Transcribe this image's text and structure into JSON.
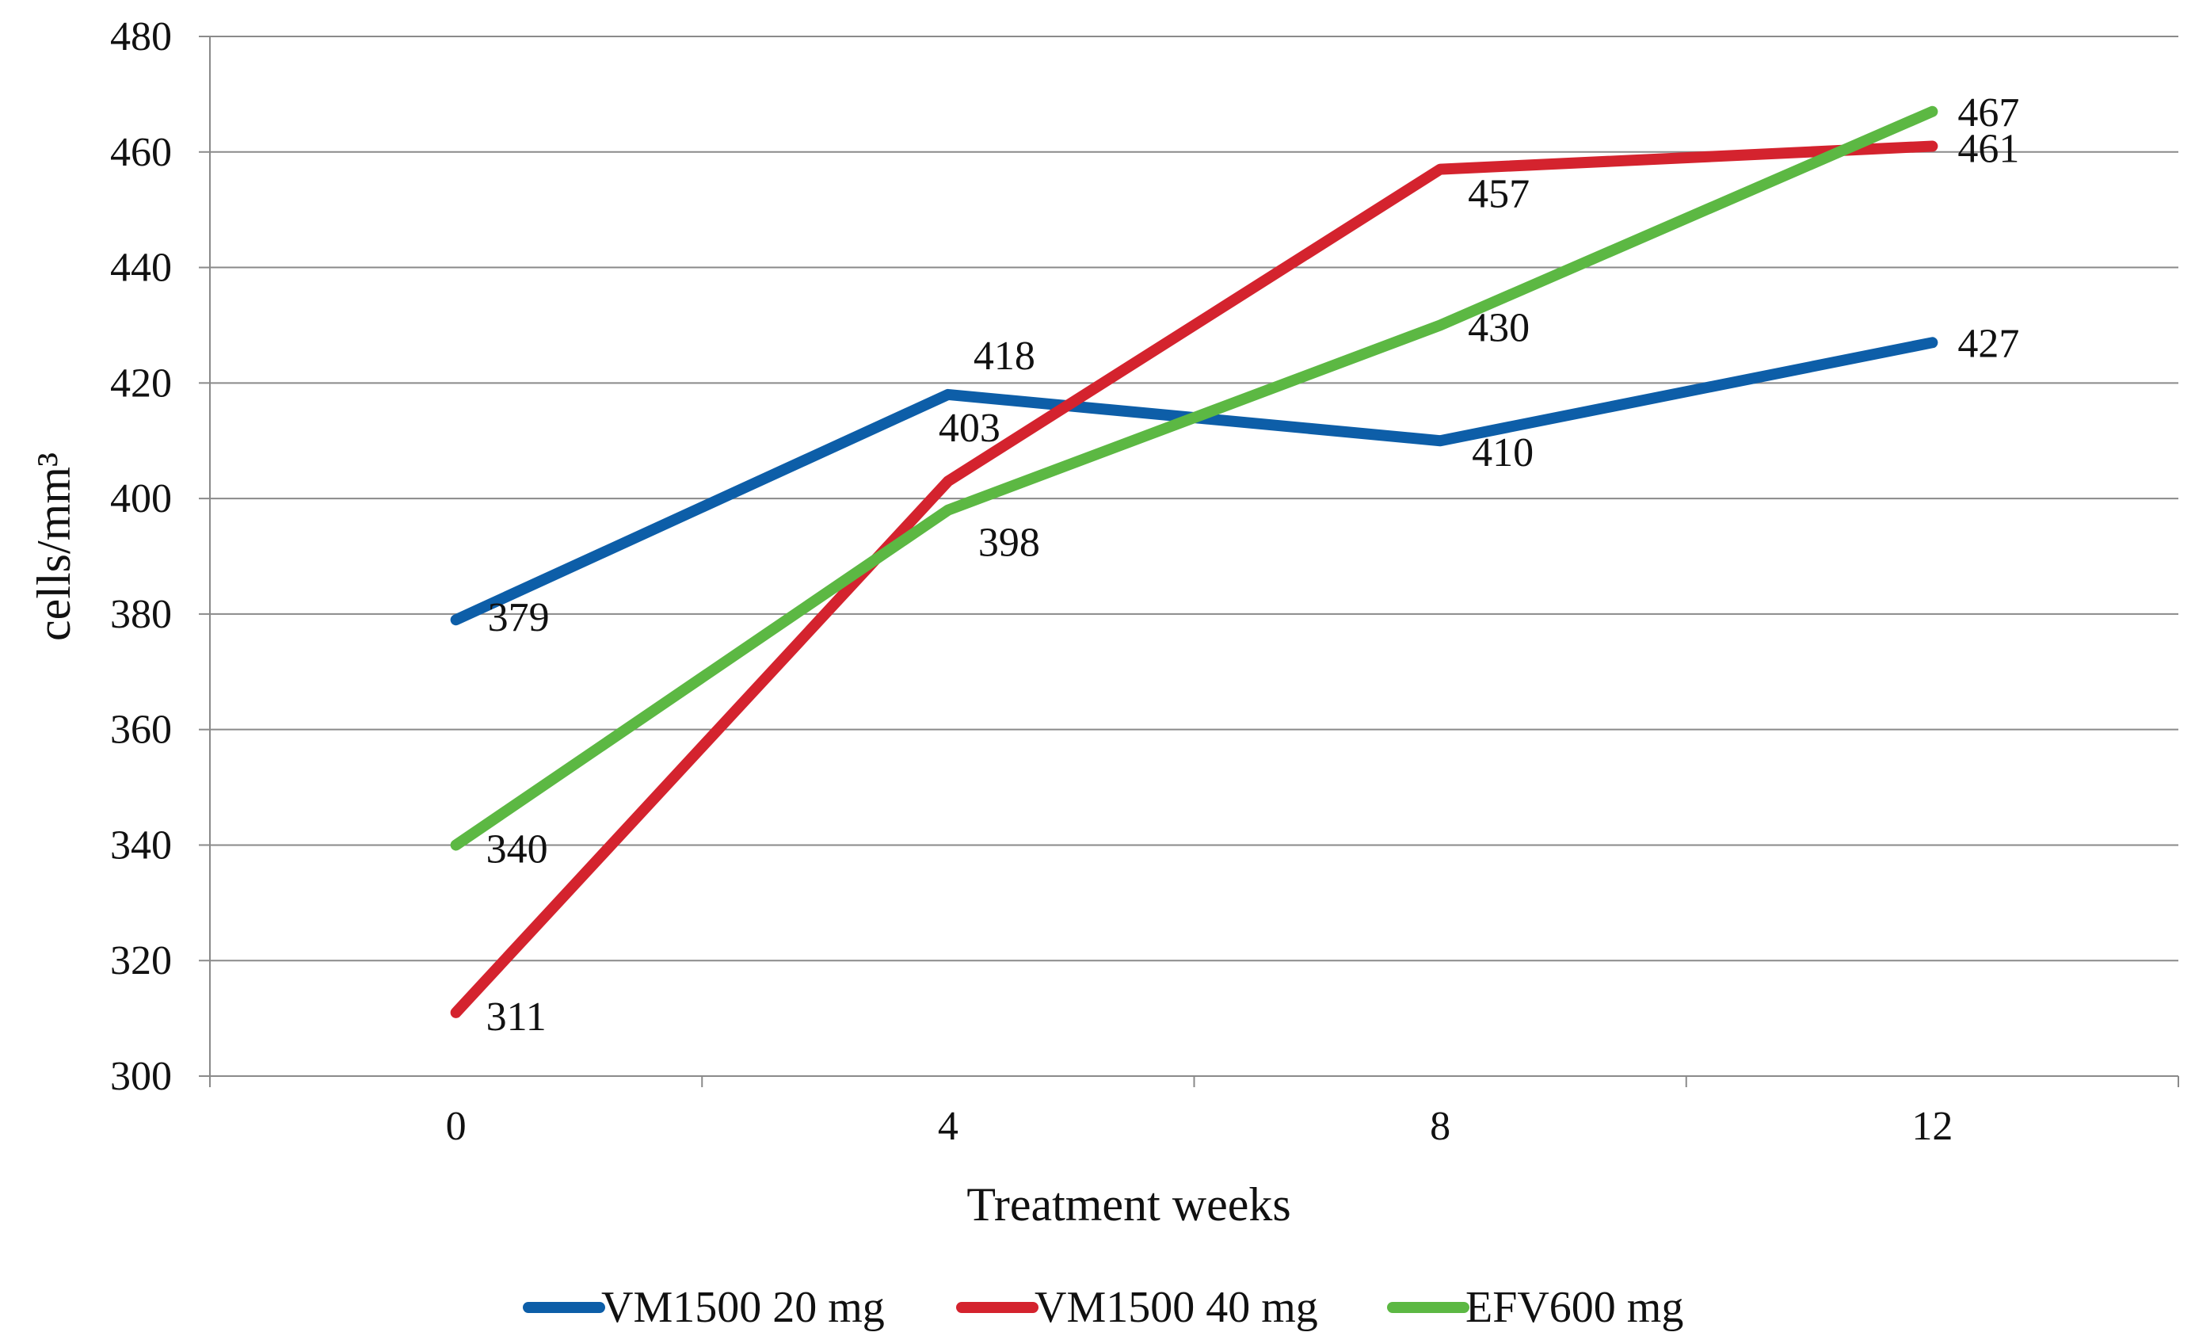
{
  "chart_data": {
    "type": "line",
    "title": "",
    "xlabel": "Treatment weeks",
    "ylabel": "cells/mm³",
    "x": [
      0,
      4,
      8,
      12
    ],
    "x_ticks": [
      "0",
      "4",
      "8",
      "12"
    ],
    "ylim": [
      300,
      480
    ],
    "y_ticks": [
      300,
      320,
      340,
      360,
      380,
      400,
      420,
      440,
      460,
      480
    ],
    "grid": "horizontal",
    "legend_position": "bottom",
    "series": [
      {
        "name": "VM1500 20 mg",
        "color": "#0d5ea8",
        "values": [
          379,
          418,
          410,
          427
        ],
        "labels": [
          "379",
          "418",
          "410",
          "427"
        ]
      },
      {
        "name": "VM1500 40 mg",
        "color": "#d4232e",
        "values": [
          311,
          403,
          457,
          461
        ],
        "labels": [
          "311",
          "403",
          "457",
          "461"
        ]
      },
      {
        "name": "EFV600 mg",
        "color": "#5cb843",
        "values": [
          340,
          398,
          430,
          467
        ],
        "labels": [
          "340",
          "398",
          "430",
          "467"
        ]
      }
    ]
  }
}
